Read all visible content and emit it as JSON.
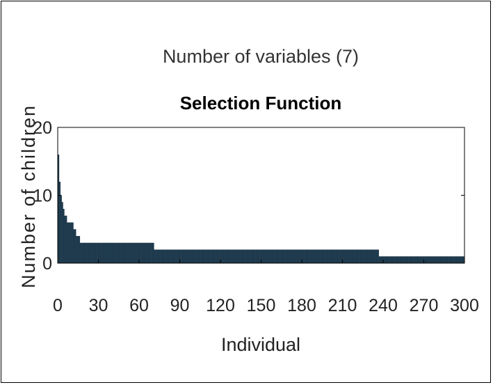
{
  "chart_data": {
    "type": "bar",
    "supertitle": "Number of variables (7)",
    "title": "Selection Function",
    "xlabel": "Individual",
    "ylabel": "Number of children",
    "xlim": [
      0,
      300
    ],
    "ylim": [
      0,
      20
    ],
    "xticks": [
      "0",
      "30",
      "60",
      "90",
      "120",
      "150",
      "180",
      "210",
      "240",
      "270",
      "300"
    ],
    "yticks": [
      "0",
      "10",
      "20"
    ],
    "bar_color": "#1f3a4d",
    "values": [
      16,
      12,
      10,
      9,
      8,
      7,
      7,
      6,
      6,
      6,
      6,
      6,
      5,
      5,
      4,
      4,
      4,
      3,
      3,
      3,
      3,
      3,
      3,
      3,
      3,
      3,
      3,
      3,
      3,
      3,
      3,
      3,
      3,
      3,
      3,
      3,
      3,
      3,
      3,
      3,
      3,
      3,
      3,
      3,
      3,
      3,
      3,
      3,
      3,
      3,
      3,
      3,
      3,
      3,
      3,
      3,
      3,
      3,
      3,
      3,
      3,
      3,
      3,
      3,
      3,
      3,
      3,
      3,
      3,
      3,
      3,
      3,
      3,
      3,
      2,
      2,
      2,
      2,
      2,
      2,
      2,
      2,
      2,
      2,
      2,
      2,
      2,
      2,
      2,
      2,
      2,
      2,
      2,
      2,
      2,
      2,
      2,
      2,
      2,
      2,
      2,
      2,
      2,
      2,
      2,
      2,
      2,
      2,
      2,
      2,
      2,
      2,
      2,
      2,
      2,
      2,
      2,
      2,
      2,
      2,
      2,
      2,
      2,
      2,
      2,
      2,
      2,
      2,
      2,
      2,
      2,
      2,
      2,
      2,
      2,
      2,
      2,
      2,
      2,
      2,
      2,
      2,
      2,
      2,
      2,
      2,
      2,
      2,
      2,
      2,
      2,
      2,
      2,
      2,
      2,
      2,
      2,
      2,
      2,
      2,
      2,
      2,
      2,
      2,
      2,
      2,
      2,
      2,
      2,
      2,
      2,
      2,
      2,
      2,
      2,
      2,
      2,
      2,
      2,
      2,
      2,
      2,
      2,
      2,
      2,
      2,
      2,
      2,
      2,
      2,
      2,
      2,
      2,
      2,
      2,
      2,
      2,
      2,
      2,
      2,
      2,
      2,
      2,
      2,
      2,
      2,
      2,
      2,
      2,
      2,
      2,
      2,
      2,
      2,
      2,
      2,
      2,
      2,
      2,
      2,
      2,
      2,
      2,
      2,
      2,
      2,
      2,
      2,
      2,
      2,
      2,
      2,
      2,
      2,
      2,
      2,
      2,
      2,
      2,
      2,
      2,
      2,
      2,
      2,
      2,
      2,
      2,
      1,
      1,
      1,
      1,
      1,
      1,
      1,
      1,
      1,
      1,
      1,
      1,
      1,
      1,
      1,
      1,
      1,
      1,
      1,
      1,
      1,
      1,
      1,
      1,
      1,
      1,
      1,
      1,
      1,
      1,
      1,
      1,
      1,
      1,
      1,
      1,
      1,
      1,
      1,
      1,
      1,
      1,
      1,
      1,
      1,
      1,
      1,
      1,
      1,
      1,
      1,
      1,
      1,
      1,
      1,
      1,
      1,
      1,
      1,
      1,
      1,
      1,
      1,
      1,
      1,
      1
    ]
  }
}
